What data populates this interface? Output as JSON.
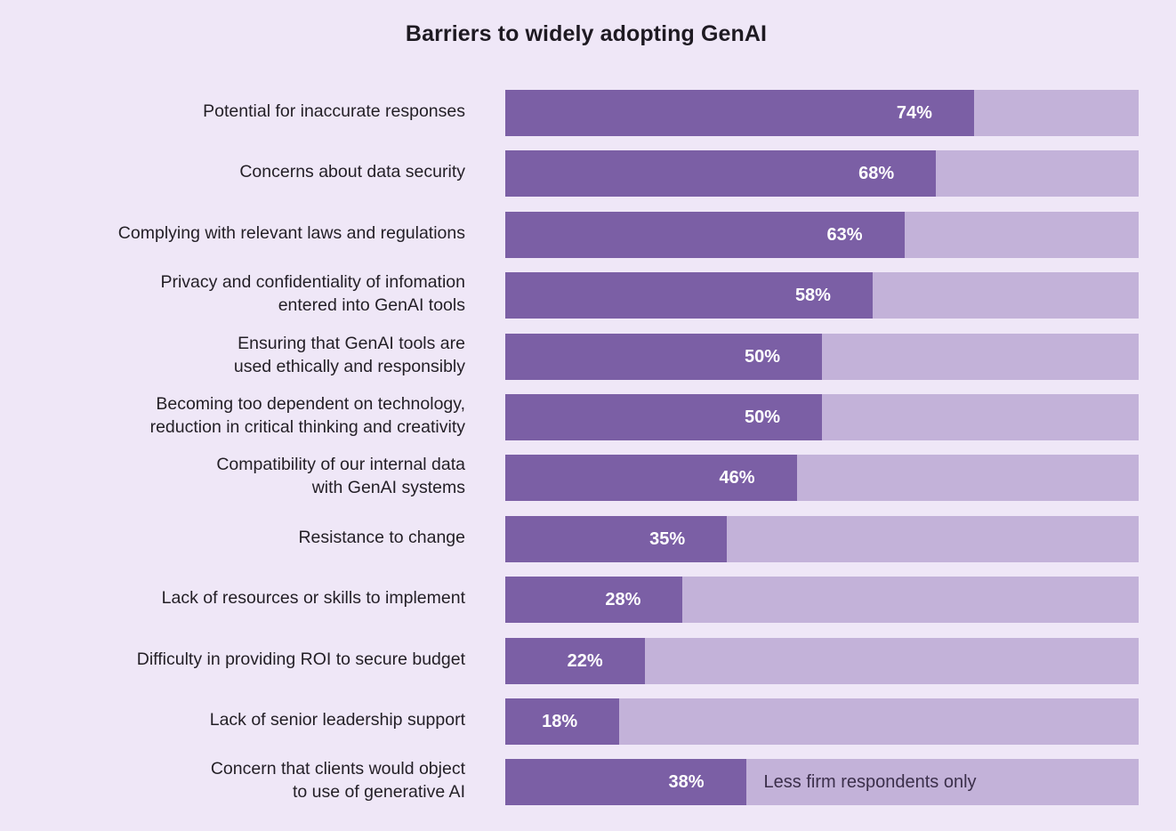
{
  "chart_data": {
    "type": "bar",
    "orientation": "horizontal",
    "stacked_to_100": true,
    "title": "Barriers to widely adopting GenAI",
    "xlim": [
      0,
      100
    ],
    "categories": [
      "Potential for inaccurate responses",
      "Concerns about data security",
      "Complying with relevant laws and regulations",
      "Privacy and confidentiality of infomation entered into GenAI tools",
      "Ensuring that GenAI tools are used ethically and responsibly",
      "Becoming too dependent on technology, reduction in critical thinking and creativity",
      "Compatibility of our internal data with GenAI systems",
      "Resistance to change",
      "Lack of resources or skills to implement",
      "Difficulty in providing ROI to secure budget",
      "Lack of senior leadership support",
      "Concern that clients would object to use of generative AI"
    ],
    "label_lines": [
      [
        "Potential for inaccurate responses"
      ],
      [
        "Concerns about data security"
      ],
      [
        "Complying with relevant laws and regulations"
      ],
      [
        "Privacy and confidentiality of infomation",
        "entered into GenAI tools"
      ],
      [
        "Ensuring that GenAI tools are",
        "used ethically and responsibly"
      ],
      [
        "Becoming too dependent on technology,",
        "reduction in critical thinking and creativity"
      ],
      [
        "Compatibility of our internal data",
        "with GenAI systems"
      ],
      [
        "Resistance to change"
      ],
      [
        "Lack of resources or skills to implement"
      ],
      [
        "Difficulty in providing ROI to secure budget"
      ],
      [
        "Lack of senior leadership support"
      ],
      [
        "Concern that clients would object",
        "to use of generative AI"
      ]
    ],
    "values": [
      74,
      68,
      63,
      58,
      50,
      50,
      46,
      35,
      28,
      22,
      18,
      38
    ],
    "value_labels": [
      "74%",
      "68%",
      "63%",
      "58%",
      "50%",
      "50%",
      "46%",
      "35%",
      "28%",
      "22%",
      "18%",
      "38%"
    ],
    "annotations": [
      {
        "category_index": 11,
        "text": "Less firm respondents only"
      }
    ],
    "colors": {
      "background": "#efe7f7",
      "fill": "#7b5fa5",
      "track": "#c3b2d9",
      "value_text": "#ffffff",
      "label_text": "#231f26"
    }
  }
}
